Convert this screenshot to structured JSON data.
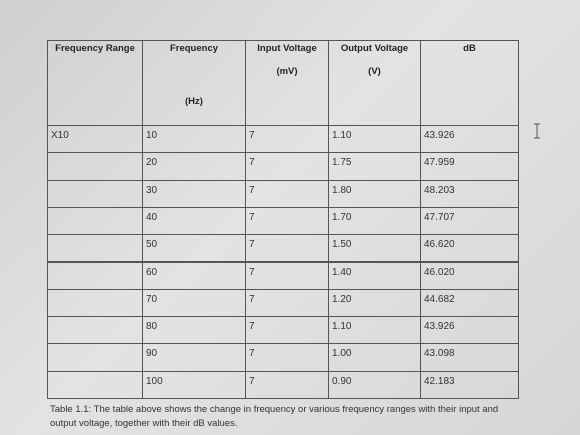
{
  "table": {
    "headers": [
      {
        "title": "Frequency Range"
      },
      {
        "title": "Frequency",
        "unit": "(Hz)"
      },
      {
        "title": "Input Voltage",
        "unit": "(mV)"
      },
      {
        "title": "Output Voltage",
        "unit": "(V)"
      },
      {
        "title": "dB"
      }
    ],
    "range": "X10",
    "rows": [
      [
        "10",
        "7",
        "1.10",
        "43.926"
      ],
      [
        "20",
        "7",
        "1.75",
        "47.959"
      ],
      [
        "30",
        "7",
        "1.80",
        "48.203"
      ],
      [
        "40",
        "7",
        "1.70",
        "47.707"
      ],
      [
        "50",
        "7",
        "1.50",
        "46.620"
      ],
      [
        "60",
        "7",
        "1.40",
        "46.020"
      ],
      [
        "70",
        "7",
        "1.20",
        "44.682"
      ],
      [
        "80",
        "7",
        "1.10",
        "43.926"
      ],
      [
        "90",
        "7",
        "1.00",
        "43.098"
      ],
      [
        "100",
        "7",
        "0.90",
        "42.183"
      ]
    ],
    "caption": "Table 1.1: The table above shows the change in frequency or various frequency ranges with their input and output voltage, together with their dB values."
  }
}
